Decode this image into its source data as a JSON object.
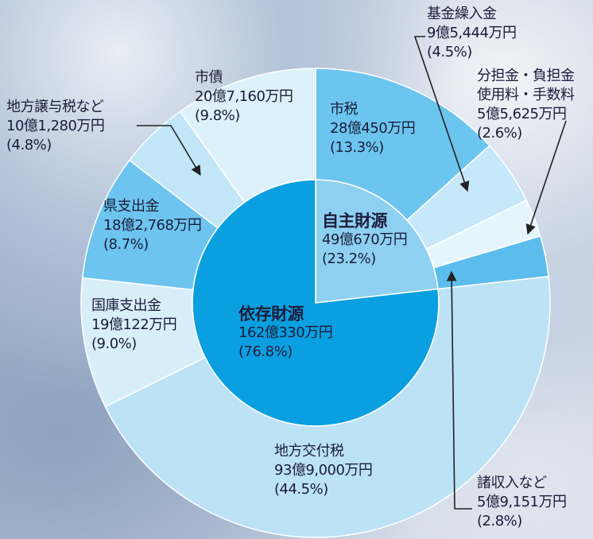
{
  "chart_data": {
    "type": "pie",
    "rings": [
      {
        "categories": [
          "自主財源",
          "依存財源"
        ],
        "values": [
          23.2,
          76.8
        ],
        "value_labels": [
          "(23.2%)",
          "(76.8%)"
        ],
        "amounts": [
          "49億670万円",
          "162億330万円"
        ],
        "colors": [
          "#8ed0f1",
          "#0a9fe0"
        ]
      },
      {
        "categories": [
          "市税",
          "基金繰入金",
          "分担金・負担金\n使用料・手数料",
          "諸収入など",
          "地方交付税",
          "国庫支出金",
          "県支出金",
          "地方譲与税など",
          "市債"
        ],
        "values": [
          13.3,
          4.5,
          2.6,
          2.8,
          44.5,
          9.0,
          8.7,
          4.8,
          9.8
        ],
        "value_labels": [
          "(13.3%)",
          "(4.5%)",
          "(2.6%)",
          "(2.8%)",
          "(44.5%)",
          "(9.0%)",
          "(8.7%)",
          "(4.8%)",
          "(9.8%)"
        ],
        "amounts": [
          "28億450万円",
          "9億5,444万円",
          "5億5,625万円",
          "5億9,151万円",
          "93億9,000万円",
          "19億122万円",
          "18億2,768万円",
          "10億1,280万円",
          "20億7,160万円"
        ],
        "colors": [
          "#6cc5ef",
          "#c6e8f8",
          "#e6f5fc",
          "#5cbdec",
          "#bce2f6",
          "#d8effa",
          "#6cc4ef",
          "#c2e5f7",
          "#ddf1fb"
        ]
      }
    ]
  }
}
